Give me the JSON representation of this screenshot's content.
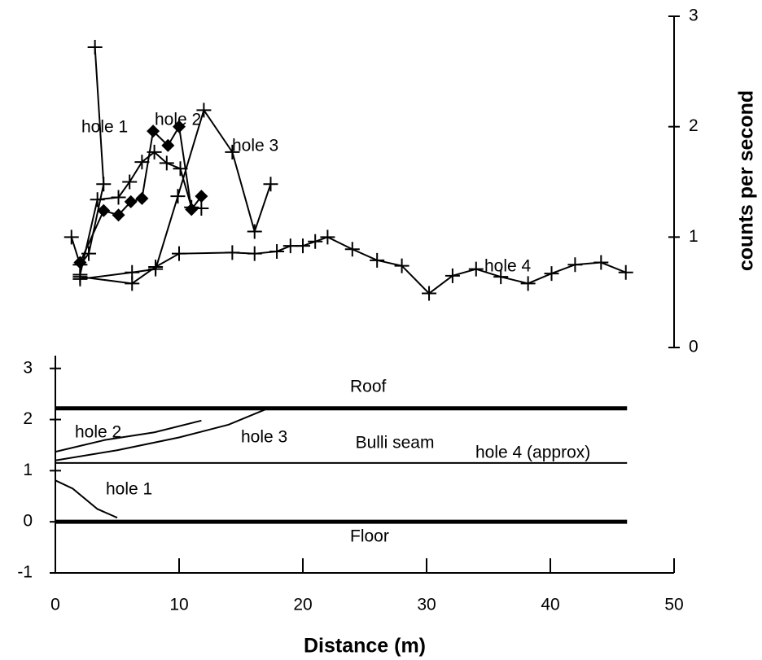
{
  "chart_data": [
    {
      "type": "line",
      "y_axis_title": "counts per second",
      "y_axis_side": "right",
      "xlim": [
        0,
        50
      ],
      "ylim": [
        0,
        3
      ],
      "yticks": [
        0,
        1,
        2,
        3
      ],
      "color": "#000000",
      "series": [
        {
          "name": "hole 1",
          "marker": "plus",
          "x": [
            1.3,
            2,
            2.7,
            3.9,
            3.2
          ],
          "values": [
            1.0,
            0.75,
            0.85,
            1.48,
            2.72
          ]
        },
        {
          "name": "hole 2",
          "marker": "diamond",
          "x": [
            2,
            3.9,
            5.1,
            6.1,
            7,
            7.9,
            9.1,
            10,
            11,
            11.8
          ],
          "values": [
            0.77,
            1.24,
            1.2,
            1.32,
            1.35,
            1.96,
            1.83,
            2.0,
            1.25,
            1.37
          ]
        },
        {
          "name": null,
          "marker": "plus",
          "x": [
            2,
            3.4,
            5.1,
            6,
            7,
            8,
            9,
            10.1,
            11,
            11.8
          ],
          "values": [
            0.66,
            1.34,
            1.36,
            1.5,
            1.68,
            1.77,
            1.67,
            1.62,
            1.27,
            1.26
          ]
        },
        {
          "name": "hole 3",
          "marker": "plus",
          "x": [
            2,
            6.2,
            8.1,
            9.9,
            12,
            14.3,
            16.1,
            17.4
          ],
          "values": [
            0.62,
            0.68,
            0.71,
            1.37,
            2.15,
            1.77,
            1.05,
            1.48
          ]
        },
        {
          "name": "hole 4",
          "marker": "plus",
          "x": [
            2,
            6.2,
            8.1,
            10,
            14.3,
            16.1,
            17.9,
            19,
            20,
            21,
            22,
            24,
            26,
            28,
            30.2,
            32.1,
            34,
            36,
            38.2,
            40.1,
            42,
            44.1,
            46.1
          ],
          "values": [
            0.64,
            0.58,
            0.73,
            0.85,
            0.86,
            0.85,
            0.87,
            0.92,
            0.92,
            0.96,
            1.0,
            0.89,
            0.79,
            0.74,
            0.49,
            0.65,
            0.71,
            0.64,
            0.58,
            0.67,
            0.75,
            0.77,
            0.68
          ]
        }
      ]
    },
    {
      "type": "line",
      "x_axis_title": "Distance (m)",
      "annotation": "Bulli seam",
      "xlim": [
        0,
        50
      ],
      "ylim": [
        -1,
        3.25
      ],
      "xticks": [
        0,
        10,
        20,
        30,
        40,
        50
      ],
      "yticks": [
        -1,
        0,
        1,
        2,
        3
      ],
      "color": "#000000",
      "series": [
        {
          "name": "Roof",
          "width": 5,
          "x": [
            0,
            46.2
          ],
          "values": [
            2.22,
            2.22
          ]
        },
        {
          "name": "hole 2",
          "width": 2,
          "x": [
            0,
            4,
            8,
            11.8
          ],
          "values": [
            1.37,
            1.6,
            1.75,
            1.98
          ]
        },
        {
          "name": "hole 3",
          "width": 2,
          "x": [
            0,
            5,
            10,
            14,
            17.2
          ],
          "values": [
            1.2,
            1.4,
            1.65,
            1.9,
            2.22
          ]
        },
        {
          "name": "hole 4 (approx)",
          "width": 2,
          "x": [
            0,
            46.2
          ],
          "values": [
            1.15,
            1.15
          ]
        },
        {
          "name": "hole 1",
          "width": 2,
          "x": [
            0,
            1.4,
            3.4,
            5
          ],
          "values": [
            0.81,
            0.65,
            0.25,
            0.08
          ]
        },
        {
          "name": "Floor",
          "width": 5,
          "x": [
            0,
            46.2
          ],
          "values": [
            0.0,
            0.0
          ]
        }
      ]
    }
  ]
}
